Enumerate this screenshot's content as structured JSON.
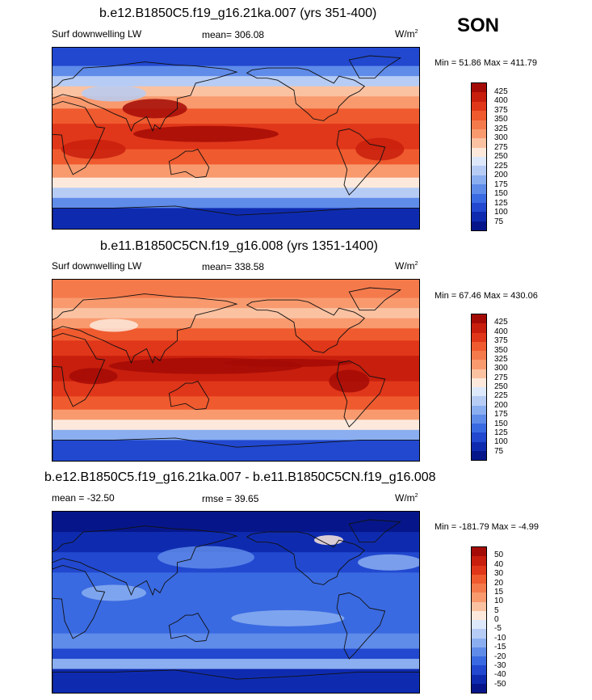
{
  "season": "SON",
  "panels": [
    {
      "title": "b.e12.B1850C5.f19_g16.21ka.007 (yrs 351-400)",
      "left_label": "Surf downwelling LW",
      "center_label": "mean= 306.08",
      "units": "W/m",
      "units_sup": "2",
      "minmax": "Min =  51.86 Max = 411.79",
      "colorbar_labels": [
        "425",
        "400",
        "375",
        "350",
        "325",
        "300",
        "275",
        "250",
        "225",
        "200",
        "175",
        "150",
        "125",
        "100",
        "75"
      ],
      "palette": [
        "#a40b06",
        "#c81e0d",
        "#e0361a",
        "#ef5a2e",
        "#f47a4c",
        "#f89a6e",
        "#fbc2a2",
        "#fde9dc",
        "#dde9fb",
        "#b6ccf5",
        "#8aaef0",
        "#5f8be9",
        "#3a6ae1",
        "#2148cf",
        "#0e2bb0",
        "#06168a"
      ],
      "style": "absolute_cold"
    },
    {
      "title": "b.e11.B1850C5CN.f19_g16.008 (yrs 1351-1400)",
      "left_label": "Surf downwelling LW",
      "center_label": "mean= 338.58",
      "units": "W/m",
      "units_sup": "2",
      "minmax": "Min =  67.46 Max = 430.06",
      "colorbar_labels": [
        "425",
        "400",
        "375",
        "350",
        "325",
        "300",
        "275",
        "250",
        "225",
        "200",
        "175",
        "150",
        "125",
        "100",
        "75"
      ],
      "palette": [
        "#a40b06",
        "#c81e0d",
        "#e0361a",
        "#ef5a2e",
        "#f47a4c",
        "#f89a6e",
        "#fbc2a2",
        "#fde9dc",
        "#dde9fb",
        "#b6ccf5",
        "#8aaef0",
        "#5f8be9",
        "#3a6ae1",
        "#2148cf",
        "#0e2bb0",
        "#06168a"
      ],
      "style": "absolute_warm"
    },
    {
      "title": "b.e12.B1850C5.f19_g16.21ka.007 - b.e11.B1850C5CN.f19_g16.008",
      "left_label": "mean = -32.50",
      "center_label": "rmse =  39.65",
      "units": "W/m",
      "units_sup": "2",
      "minmax": "Min = -181.79 Max =  -4.99",
      "colorbar_labels": [
        "50",
        "40",
        "30",
        "20",
        "15",
        "10",
        "5",
        "0",
        "-5",
        "-10",
        "-15",
        "-20",
        "-30",
        "-40",
        "-50"
      ],
      "palette": [
        "#a40b06",
        "#c81e0d",
        "#e0361a",
        "#ef5a2e",
        "#f47a4c",
        "#f89a6e",
        "#fbc2a2",
        "#fde9dc",
        "#dde9fb",
        "#b6ccf5",
        "#8aaef0",
        "#5f8be9",
        "#3a6ae1",
        "#2148cf",
        "#0e2bb0",
        "#06168a"
      ],
      "style": "difference"
    }
  ]
}
